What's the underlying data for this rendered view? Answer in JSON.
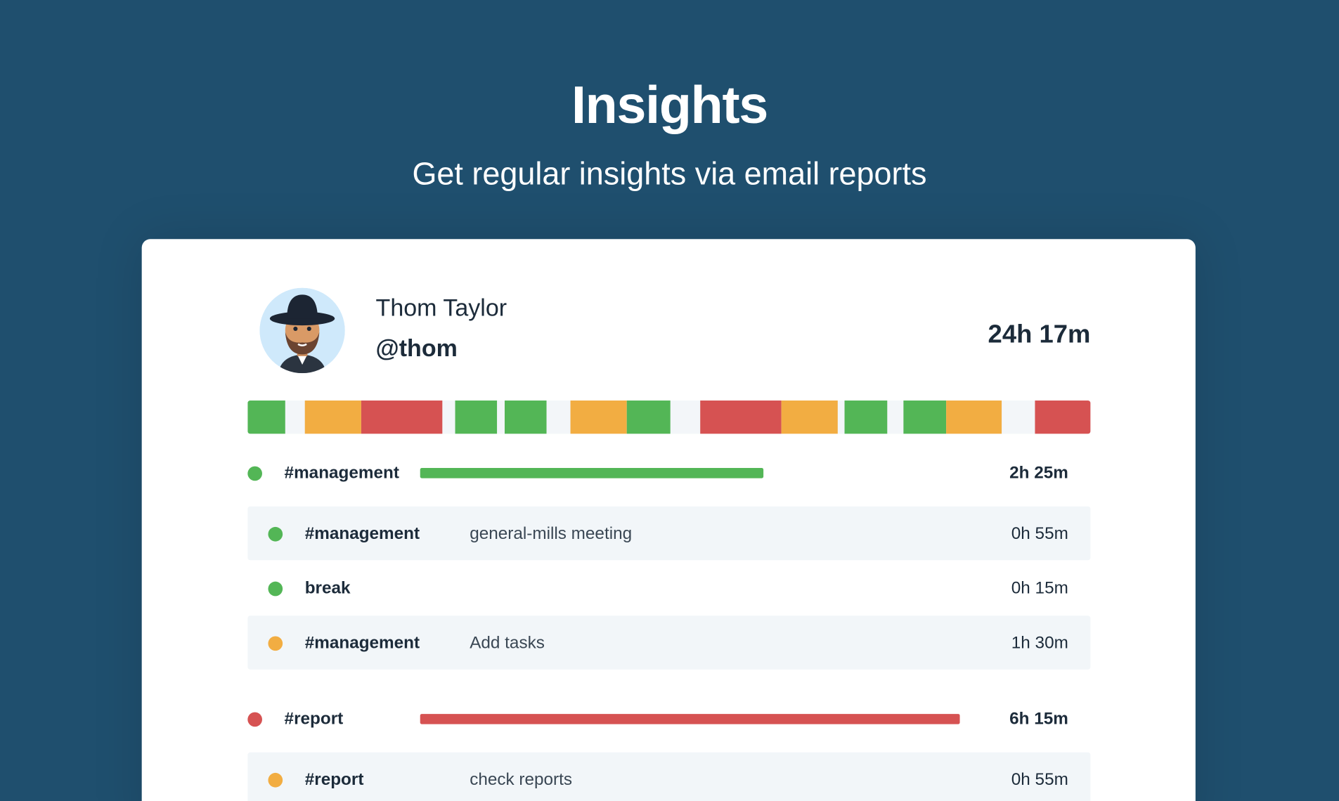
{
  "header": {
    "title": "Insights",
    "subtitle": "Get regular insights via email reports"
  },
  "profile": {
    "name": "Thom Taylor",
    "handle": "@thom",
    "total": "24h 17m"
  },
  "groups": [
    {
      "tag": "#management",
      "total": "2h 25m",
      "color": "#53b656",
      "entries": [
        {
          "tag": "#management",
          "description": "general-mills meeting",
          "time": "0h 55m",
          "color": "#53b656"
        },
        {
          "tag": "break",
          "time": "0h 15m",
          "color": "#53b656"
        },
        {
          "tag": "#management",
          "description": "Add tasks",
          "time": "1h 30m",
          "color": "#f2ad42"
        }
      ]
    },
    {
      "tag": "#report",
      "total": "6h 15m",
      "color": "#d65252",
      "entries": [
        {
          "tag": "#report",
          "description": "check reports",
          "time": "0h 55m",
          "color": "#f2ad42"
        }
      ]
    }
  ]
}
